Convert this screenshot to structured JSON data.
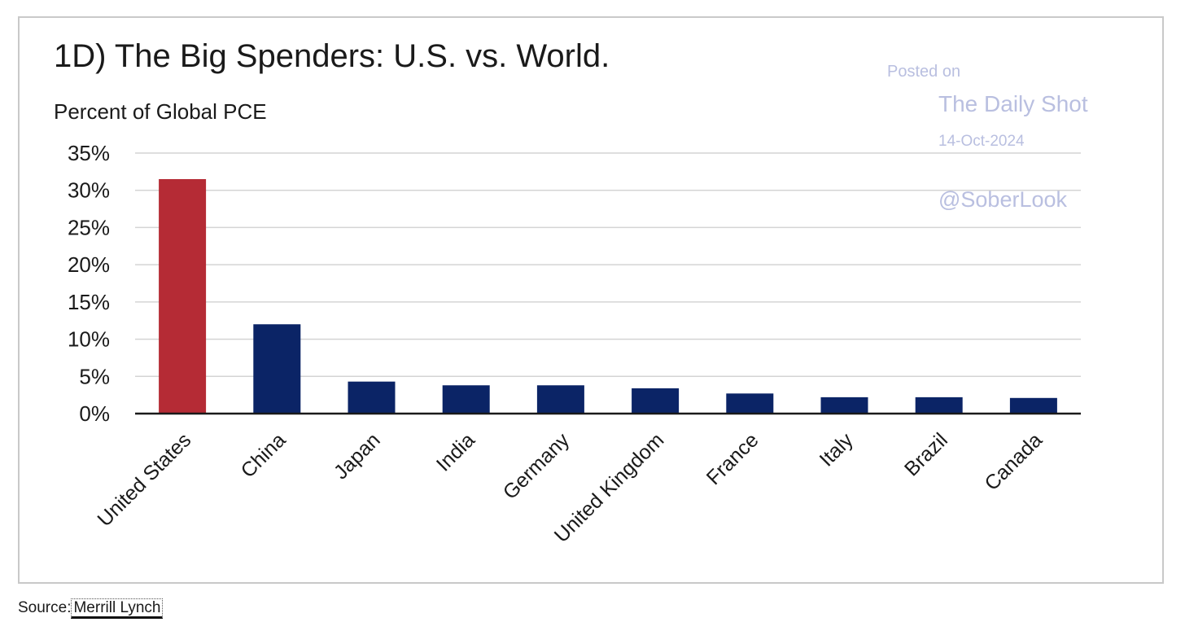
{
  "colors": {
    "highlight_bar": "#b52b35",
    "bar": "#0b2466",
    "grid": "#d4d4d4",
    "axis": "#1a1a1a",
    "watermark": "#b9bfe0"
  },
  "watermark": {
    "posted_on": "Posted on",
    "site": "The Daily Shot",
    "date": "14-Oct-2024",
    "handle": "@SoberLook"
  },
  "source": {
    "prefix": "Source:",
    "link_text": "Merrill Lynch"
  },
  "chart_data": {
    "type": "bar",
    "title": "1D) The Big Spenders: U.S. vs. World.",
    "subtitle": "Percent of Global PCE",
    "categories": [
      "United States",
      "China",
      "Japan",
      "India",
      "Germany",
      "United Kingdom",
      "France",
      "Italy",
      "Brazil",
      "Canada"
    ],
    "values": [
      31.5,
      12.0,
      4.3,
      3.8,
      3.8,
      3.4,
      2.7,
      2.2,
      2.2,
      2.1
    ],
    "highlight_index": 0,
    "y_ticks": [
      "0%",
      "5%",
      "10%",
      "15%",
      "20%",
      "25%",
      "30%",
      "35%"
    ],
    "ylim": [
      0,
      35
    ],
    "grid": true
  }
}
